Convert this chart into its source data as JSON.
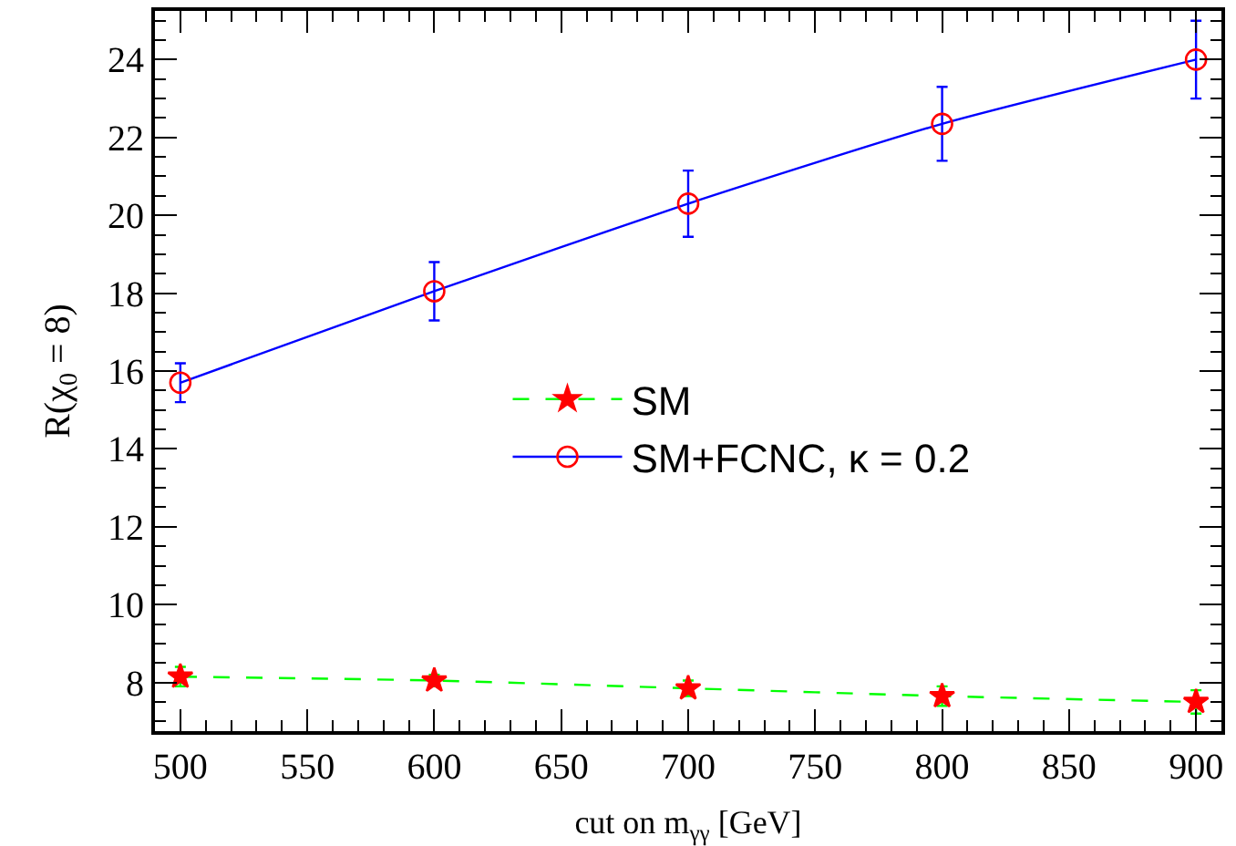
{
  "chart_data": {
    "type": "line",
    "xlabel": "cut on m$_{γγ}$ [GeV]",
    "ylabel": "R(χ$_{0}$ = 8)",
    "x": [
      500,
      600,
      700,
      800,
      900
    ],
    "series": [
      {
        "name": "SM",
        "color": "#00ff00",
        "colors": [
          "#ff0000",
          "#ff0000",
          "#ff0000",
          "#ff0000",
          "#ff0000"
        ],
        "marker": "star",
        "line_style": "dashed",
        "values": [
          8.15,
          8.05,
          7.85,
          7.65,
          7.5
        ],
        "errors": [
          0.25,
          0.15,
          0.2,
          0.25,
          0.3
        ]
      },
      {
        "name": "SM+FCNC, κ = 0.2",
        "color": "#0000ff",
        "colors": [
          "#ff0000",
          "#ff0000",
          "#ff0000",
          "#ff0000",
          "#ff0000"
        ],
        "marker": "circle",
        "line_style": "solid",
        "values": [
          15.7,
          18.05,
          20.3,
          22.35,
          24.0
        ],
        "errors": [
          0.5,
          0.75,
          0.85,
          0.95,
          1.0
        ]
      }
    ],
    "xlim": [
      490,
      910
    ],
    "xticks": [
      500,
      550,
      600,
      650,
      700,
      750,
      800,
      850,
      900
    ],
    "ylim": [
      6.75,
      25.25
    ],
    "yticks": [
      8,
      10,
      12,
      14,
      16,
      18,
      20,
      22,
      24
    ],
    "grid": false,
    "legend": "center"
  }
}
